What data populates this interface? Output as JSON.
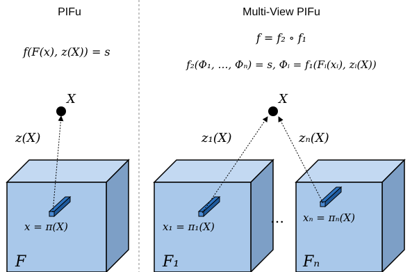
{
  "left": {
    "title": "PIFu",
    "formula": "f(F(x), z(X)) = s",
    "point_label": "X",
    "ray_label": "z(X)",
    "pixel_label": "x = π(X)",
    "cube_label": "F"
  },
  "right": {
    "title": "Multi-View PIFu",
    "formula1": "f = f₂ ∘ f₁",
    "formula2": "f₂(Φ₁, …, Φₙ) = s,  Φᵢ = f₁(Fᵢ(xᵢ), zᵢ(X))",
    "point_label": "X",
    "ray1_label": "z₁(X)",
    "rayn_label": "zₙ(X)",
    "pixel1_label": "x₁ = π₁(X)",
    "pixeln_label": "xₙ = πₙ(X)",
    "cube1_label": "F₁",
    "cuben_label": "Fₙ",
    "ellipsis": "…"
  },
  "colors": {
    "cube_front": "#a9c8ea",
    "cube_top": "#c3d9f2",
    "cube_side": "#7d9fc6",
    "pixel_bar": "#2f74c0",
    "divider": "#888888"
  }
}
